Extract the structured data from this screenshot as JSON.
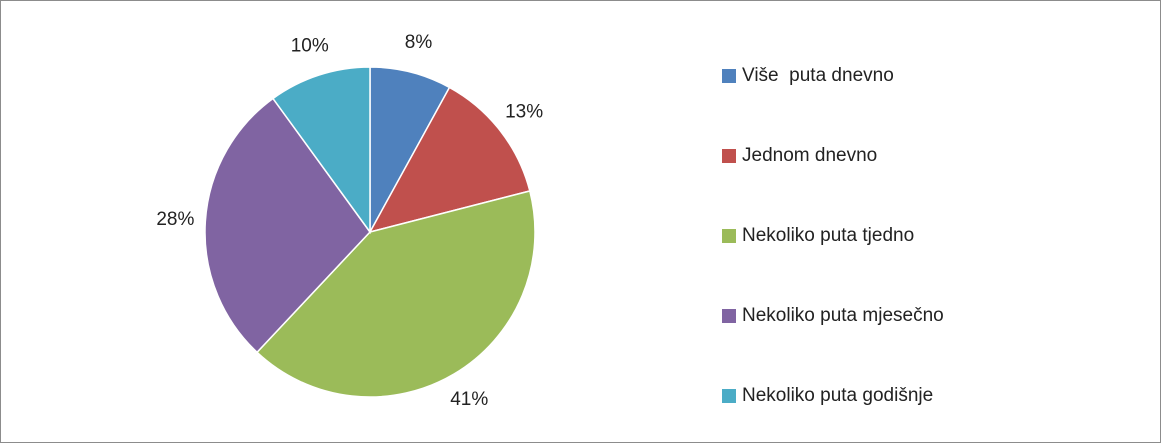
{
  "chart_data": {
    "type": "pie",
    "categories": [
      "Više  puta dnevno",
      "Jednom dnevno",
      "Nekoliko puta tjedno",
      "Nekoliko puta mjesečno",
      "Nekoliko puta godišnje"
    ],
    "values": [
      8,
      13,
      41,
      28,
      10
    ],
    "value_labels": [
      "8%",
      "13%",
      "41%",
      "28%",
      "10%"
    ],
    "colors": [
      "#4f81bd",
      "#c0504d",
      "#9bbb59",
      "#8064a2",
      "#4bacc6"
    ],
    "legend": "right"
  }
}
